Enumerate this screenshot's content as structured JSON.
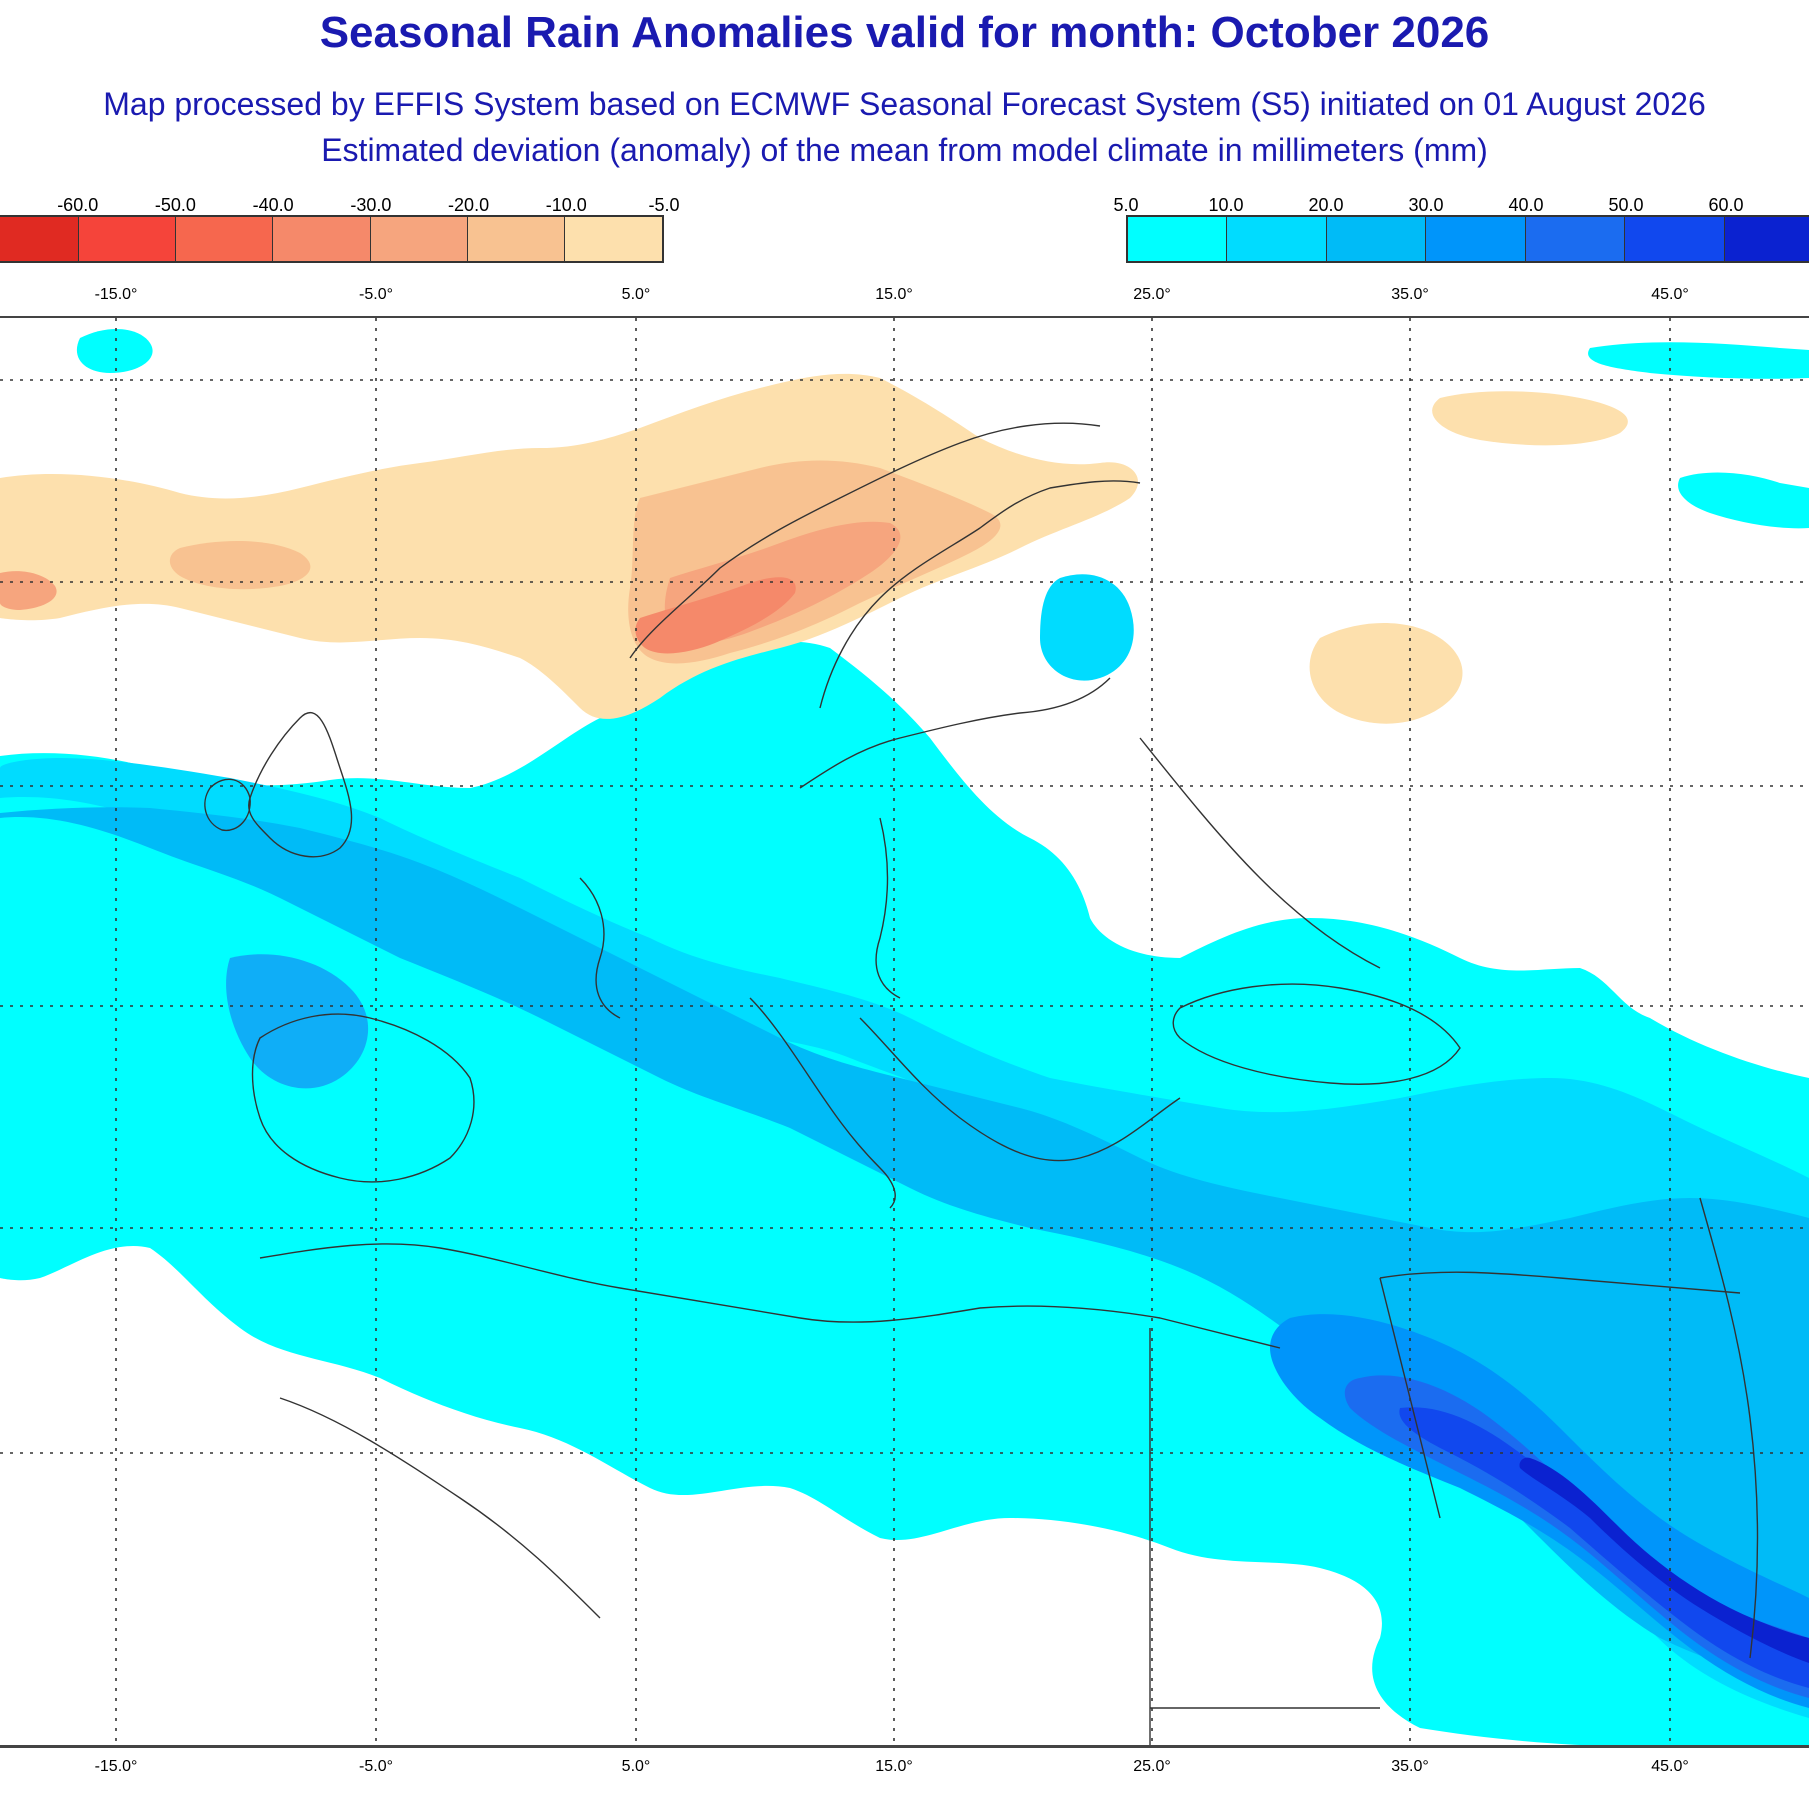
{
  "header": {
    "title": "Seasonal Rain Anomalies valid for month: October 2026",
    "subtitle1": "Map processed by EFFIS System based on ECMWF Seasonal Forecast System (S5) initiated on 01 August 2026",
    "subtitle2": "Estimated deviation (anomaly) of the mean from model climate in millimeters (mm)"
  },
  "legend_negative": {
    "labels": [
      "-60.0",
      "-50.0",
      "-40.0",
      "-30.0",
      "-20.0",
      "-10.0",
      "-5.0"
    ],
    "colors": [
      "#e02a22",
      "#f5443a",
      "#f6674e",
      "#f5896a",
      "#f6a57e",
      "#f8c291",
      "#fde0ad"
    ]
  },
  "legend_positive": {
    "labels": [
      "5.0",
      "10.0",
      "20.0",
      "30.0",
      "40.0",
      "50.0",
      "60.0"
    ],
    "colors": [
      "#00ffff",
      "#00dcff",
      "#00bbf7",
      "#0095fa",
      "#1b6cf0",
      "#1148ee",
      "#0b22d0"
    ]
  },
  "longitude_labels": [
    "-15.0°",
    "-5.0°",
    "5.0°",
    "15.0°",
    "25.0°",
    "35.0°",
    "45.0°"
  ],
  "map": {
    "background": "#ffffff",
    "graticule_color": "#333333",
    "border_color": "#333333",
    "anomaly_colors": {
      "dry_light": "#fde0ad",
      "dry_mid": "#f8c291",
      "dry_strong": "#f6a57e",
      "dry_max": "#f5896a",
      "wet_5": "#00ffff",
      "wet_10": "#00dcff",
      "wet_20": "#00bbf7",
      "wet_30": "#0095fa",
      "wet_40": "#1b6cf0",
      "wet_50": "#1148ee",
      "wet_60": "#0b22d0"
    }
  }
}
